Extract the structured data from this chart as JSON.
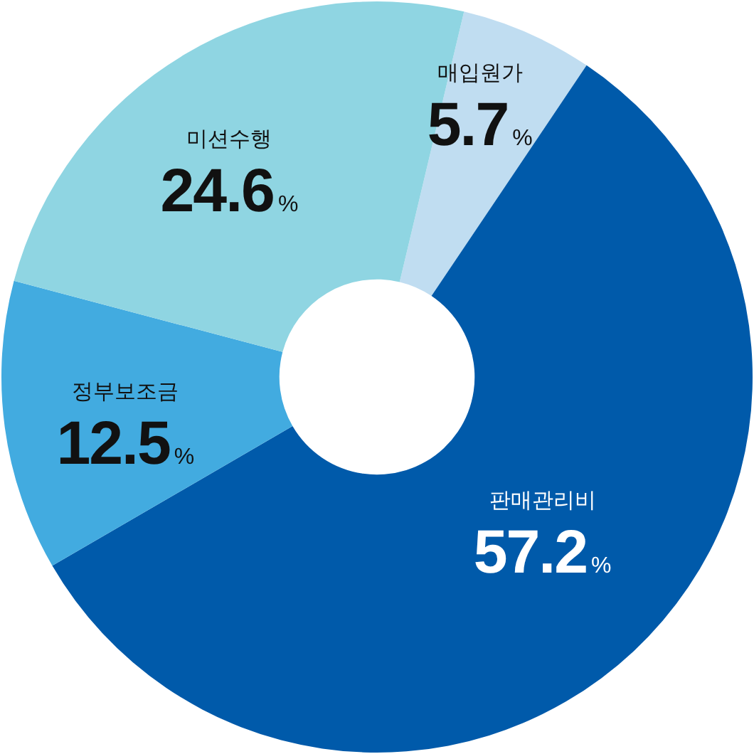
{
  "chart_data": {
    "type": "donut",
    "categories": [
      "매입원가",
      "판매관리비",
      "정부보조금",
      "미션수행"
    ],
    "values": [
      5.7,
      57.2,
      12.5,
      24.6
    ],
    "colors": [
      "#c0ddf1",
      "#005aaa",
      "#42abe0",
      "#8fd5e2"
    ],
    "value_labels": [
      "5.7%",
      "57.2%",
      "12.5%",
      "24.6%"
    ]
  }
}
